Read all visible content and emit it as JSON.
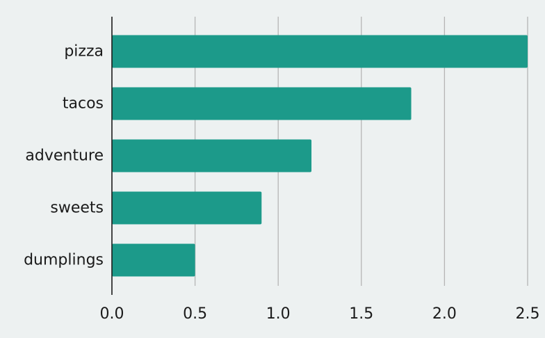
{
  "chart_data": {
    "type": "bar",
    "orientation": "horizontal",
    "categories": [
      "pizza",
      "tacos",
      "adventure",
      "sweets",
      "dumplings"
    ],
    "values": [
      2.5,
      1.8,
      1.2,
      0.9,
      0.5
    ],
    "title": "",
    "xlabel": "",
    "ylabel": "",
    "xlim": [
      0,
      2.5
    ],
    "xticks": [
      "0.0",
      "0.5",
      "1.0",
      "1.5",
      "2.0",
      "2.5"
    ],
    "grid": "vertical",
    "legend": "none",
    "colors": {
      "bar": "#1c9a8a",
      "background": "#edf1f1",
      "grid": "#b5b5b5",
      "axis": "#1a1a1a"
    }
  }
}
